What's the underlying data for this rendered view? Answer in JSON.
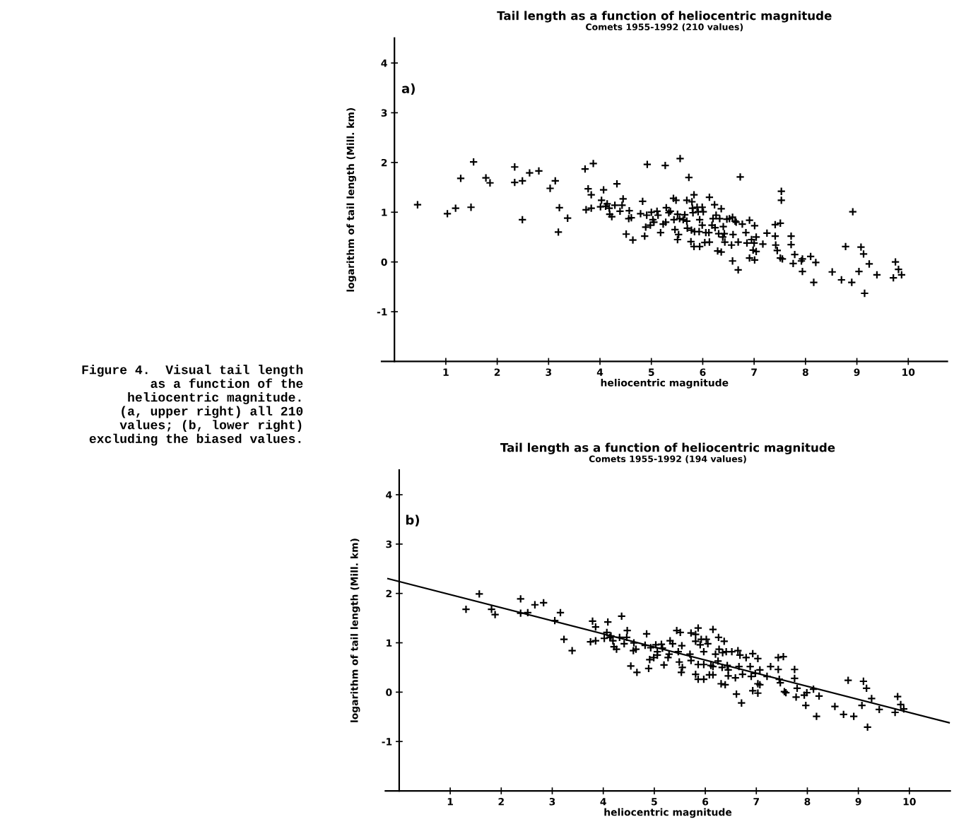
{
  "chart_data": [
    {
      "type": "scatter",
      "title": "Tail length as a function of heliocentric magnitude",
      "subtitle": "Comets 1955-1992 (210 values)",
      "xlabel": "heliocentric magnitude",
      "ylabel": "logarithm of tail length (Mill. km)",
      "xlim": [
        -0.25,
        10.76
      ],
      "ylim": [
        -2,
        4.5
      ],
      "xticks": [
        1,
        2,
        3,
        4,
        5,
        6,
        7,
        8,
        9,
        10
      ],
      "yticks": [
        -1,
        0,
        1,
        2,
        3,
        4
      ],
      "annotations": [
        "a)",
        "Figure 4.  Visual tail length\nas a function of the\nheliocentric magnitude.\n(a, upper right) all 210\nvalues; (b, lower right)\nexcluding the biased values."
      ],
      "series": [
        {
          "marker": "cross",
          "color": "#000000",
          "x": [
            0.45,
            1.03,
            1.19,
            1.29,
            1.49,
            1.54,
            1.78,
            1.86,
            2.34,
            2.34,
            2.49,
            2.49,
            2.63,
            2.81,
            3.03,
            3.13,
            3.21,
            3.19,
            3.37,
            3.71,
            3.87,
            3.77,
            3.83,
            3.73,
            3.83,
            4.03,
            4.07,
            4.01,
            4.11,
            4.14,
            4.18,
            4.19,
            4.23,
            4.29,
            4.33,
            4.39,
            4.43,
            4.45,
            4.51,
            4.57,
            4.56,
            4.61,
            4.64,
            4.83,
            4.79,
            4.92,
            4.91,
            4.87,
            4.89,
            5.0,
            4.98,
            5.03,
            5.05,
            5.11,
            5.13,
            5.18,
            5.23,
            5.27,
            5.56,
            5.73,
            5.29,
            5.28,
            5.34,
            5.37,
            5.43,
            5.48,
            5.69,
            5.79,
            5.83,
            5.44,
            5.51,
            5.55,
            5.62,
            5.65,
            5.69,
            5.7,
            5.46,
            5.53,
            5.51,
            5.78,
            5.84,
            5.77,
            5.83,
            5.94,
            5.93,
            5.8,
            5.81,
            5.89,
            5.91,
            5.99,
            6.01,
            5.94,
            5.99,
            6.06,
            6.12,
            6.04,
            6.13,
            6.13,
            6.23,
            6.36,
            6.26,
            6.2,
            6.33,
            6.18,
            6.24,
            6.31,
            6.4,
            6.39,
            6.42,
            6.43,
            6.29,
            6.36,
            6.47,
            6.52,
            6.58,
            6.63,
            6.65,
            6.59,
            6.56,
            6.58,
            6.69,
            6.73,
            6.69,
            6.77,
            6.84,
            6.86,
            6.91,
            6.95,
            7.0,
            7.04,
            7.01,
            6.98,
            7.04,
            6.91,
            7.01,
            7.17,
            7.25,
            7.41,
            7.51,
            7.53,
            7.53,
            7.41,
            7.42,
            7.45,
            7.51,
            7.55,
            7.72,
            7.72,
            7.79,
            7.76,
            7.94,
            7.92,
            7.94,
            8.1,
            8.2,
            8.16,
            8.52,
            8.7,
            8.78,
            8.9,
            8.92,
            9.04,
            9.08,
            9.13,
            9.15,
            9.24,
            9.39,
            9.75,
            9.81,
            9.71,
            9.87
          ],
          "values": [
            1.15,
            0.97,
            1.08,
            1.68,
            1.1,
            2.01,
            1.69,
            1.59,
            1.91,
            1.6,
            1.63,
            0.85,
            1.79,
            1.83,
            1.48,
            1.63,
            1.09,
            0.6,
            0.88,
            1.87,
            1.98,
            1.47,
            1.35,
            1.05,
            1.08,
            1.24,
            1.45,
            1.11,
            1.12,
            1.17,
            1.08,
            0.96,
            0.91,
            1.14,
            1.57,
            1.02,
            1.14,
            1.27,
            0.56,
            1.03,
            0.87,
            0.89,
            0.44,
            1.22,
            0.97,
            1.96,
            0.94,
            0.52,
            0.7,
            1.0,
            0.74,
            0.85,
            0.8,
            1.02,
            0.94,
            0.59,
            0.76,
            1.94,
            2.08,
            1.7,
            1.09,
            0.8,
            0.99,
            1.02,
            1.28,
            1.24,
            1.24,
            1.21,
            1.35,
            0.85,
            0.96,
            0.87,
            0.85,
            0.95,
            0.82,
            0.68,
            0.65,
            0.55,
            0.45,
            0.64,
            0.61,
            0.41,
            0.31,
            0.31,
            0.61,
            1.08,
            0.99,
            1.1,
            1.01,
            1.1,
            1.01,
            0.85,
            0.74,
            0.59,
            0.59,
            0.39,
            0.4,
            1.3,
            1.15,
            1.07,
            0.94,
            0.87,
            0.87,
            0.74,
            0.69,
            0.57,
            0.71,
            0.5,
            0.57,
            0.4,
            0.22,
            0.2,
            0.86,
            0.87,
            0.9,
            0.82,
            0.8,
            0.55,
            0.34,
            0.02,
            -0.16,
            1.71,
            0.4,
            0.76,
            0.59,
            0.38,
            0.84,
            0.45,
            0.38,
            0.5,
            0.73,
            0.24,
            0.21,
            0.08,
            0.04,
            0.36,
            0.58,
            0.75,
            0.78,
            1.42,
            1.24,
            0.52,
            0.34,
            0.23,
            0.08,
            0.06,
            0.52,
            0.35,
            0.15,
            -0.03,
            0.06,
            0.02,
            -0.19,
            0.11,
            -0.01,
            -0.41,
            -0.2,
            -0.36,
            0.31,
            -0.41,
            1.01,
            -0.19,
            0.3,
            0.16,
            -0.63,
            -0.04,
            -0.26,
            0.0,
            -0.15,
            -0.32,
            -0.26
          ]
        }
      ]
    },
    {
      "type": "scatter",
      "title": "Tail length as a function of heliocentric magnitude",
      "subtitle": "Comets 1955-1992 (194 values)",
      "xlabel": "heliocentric magnitude",
      "ylabel": "logarithm of tail length (Mill. km)",
      "xlim": [
        -0.27,
        10.8
      ],
      "ylim": [
        -2,
        4.5
      ],
      "xticks": [
        1,
        2,
        3,
        4,
        5,
        6,
        7,
        8,
        9,
        10
      ],
      "yticks": [
        -1,
        0,
        1,
        2,
        3,
        4
      ],
      "annotations": [
        "b)"
      ],
      "series": [
        {
          "marker": "cross",
          "color": "#000000",
          "x": [
            1.31,
            1.57,
            1.81,
            1.88,
            2.38,
            2.38,
            2.52,
            2.66,
            2.83,
            3.05,
            3.16,
            3.23,
            3.39,
            3.79,
            3.85,
            3.75,
            3.85,
            4.07,
            4.09,
            4.02,
            4.13,
            4.15,
            4.19,
            4.21,
            4.26,
            4.32,
            4.36,
            4.41,
            4.47,
            4.46,
            4.54,
            4.6,
            4.59,
            4.64,
            4.66,
            4.85,
            4.82,
            4.93,
            4.89,
            4.91,
            4.99,
            5.03,
            5.06,
            5.06,
            5.14,
            5.16,
            5.19,
            5.27,
            5.31,
            5.36,
            5.29,
            5.44,
            5.51,
            5.54,
            5.47,
            5.49,
            5.55,
            5.53,
            5.72,
            5.81,
            5.86,
            5.81,
            5.92,
            6.02,
            5.9,
            6.05,
            6.15,
            6.26,
            6.37,
            5.97,
            5.7,
            5.72,
            5.86,
            5.97,
            6.11,
            6.15,
            5.81,
            5.86,
            5.97,
            6.08,
            6.15,
            6.2,
            6.27,
            6.34,
            6.41,
            6.52,
            6.64,
            6.68,
            6.31,
            6.39,
            6.33,
            6.43,
            6.45,
            6.45,
            6.25,
            6.61,
            6.71,
            6.59,
            6.66,
            6.73,
            6.8,
            6.88,
            6.93,
            6.9,
            6.98,
            7.03,
            7.07,
            6.93,
            7.03,
            7.03,
            7.07,
            7.21,
            7.28,
            7.43,
            7.53,
            7.43,
            7.45,
            7.47,
            7.55,
            7.58,
            7.75,
            7.75,
            7.8,
            7.78,
            7.94,
            7.99,
            7.97,
            8.12,
            8.23,
            8.18,
            8.54,
            8.71,
            8.8,
            8.91,
            9.07,
            9.1,
            9.16,
            9.18,
            9.26,
            9.41,
            9.72,
            9.77,
            9.83,
            9.89
          ],
          "values": [
            1.68,
            1.99,
            1.68,
            1.57,
            1.89,
            1.6,
            1.61,
            1.77,
            1.81,
            1.45,
            1.61,
            1.07,
            0.84,
            1.44,
            1.32,
            1.02,
            1.04,
            1.21,
            1.42,
            1.09,
            1.11,
            1.14,
            1.04,
            0.92,
            0.87,
            1.11,
            1.54,
            0.98,
            1.25,
            1.11,
            0.53,
            1.0,
            0.84,
            0.87,
            0.4,
            1.18,
            0.95,
            0.9,
            0.48,
            0.66,
            0.7,
            0.96,
            0.82,
            0.75,
            0.97,
            0.89,
            0.55,
            0.7,
            1.04,
            0.98,
            0.77,
            1.25,
            1.21,
            0.94,
            0.82,
            0.61,
            0.5,
            0.4,
            1.2,
            1.17,
            1.3,
            1.03,
            1.07,
            1.07,
            0.96,
            0.98,
            1.27,
            1.11,
            1.03,
            0.82,
            0.77,
            0.64,
            0.56,
            0.56,
            0.54,
            0.52,
            0.36,
            0.26,
            0.26,
            0.35,
            0.35,
            0.77,
            0.87,
            0.8,
            0.82,
            0.82,
            0.84,
            0.75,
            0.17,
            0.15,
            0.5,
            0.54,
            0.45,
            0.33,
            0.63,
            -0.04,
            -0.22,
            0.29,
            0.52,
            0.36,
            0.7,
            0.52,
            0.78,
            0.32,
            0.38,
            0.68,
            0.45,
            0.03,
            -0.02,
            0.17,
            0.15,
            0.32,
            0.52,
            0.7,
            0.72,
            0.46,
            0.26,
            0.19,
            0.01,
            -0.01,
            0.46,
            0.28,
            0.08,
            -0.1,
            -0.06,
            -0.01,
            -0.27,
            0.06,
            -0.08,
            -0.49,
            -0.29,
            -0.45,
            0.24,
            -0.49,
            -0.27,
            0.22,
            0.08,
            -0.71,
            -0.13,
            -0.35,
            -0.41,
            -0.09,
            -0.25,
            -0.34
          ]
        },
        {
          "type": "line",
          "color": "#000000",
          "x": [
            -0.22,
            10.78
          ],
          "values": [
            2.3,
            -0.62
          ]
        }
      ]
    }
  ]
}
